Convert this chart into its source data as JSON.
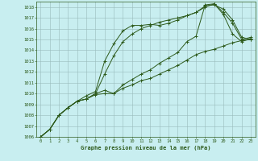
{
  "title": "Graphe pression niveau de la mer (hPa)",
  "bg_color": "#c8eef0",
  "grid_color": "#99bbbb",
  "line_color": "#2d5a1b",
  "ylim": [
    1006,
    1018.5
  ],
  "xlim": [
    -0.5,
    23.5
  ],
  "yticks": [
    1006,
    1007,
    1008,
    1009,
    1010,
    1011,
    1012,
    1013,
    1014,
    1015,
    1016,
    1017,
    1018
  ],
  "xticks": [
    0,
    1,
    2,
    3,
    4,
    5,
    6,
    7,
    8,
    9,
    10,
    11,
    12,
    13,
    14,
    15,
    16,
    17,
    18,
    19,
    20,
    21,
    22,
    23
  ],
  "lines": [
    {
      "x": [
        0,
        1,
        2,
        3,
        4,
        5,
        6,
        7,
        8,
        9,
        10,
        11,
        12,
        13,
        14,
        15,
        16,
        17,
        18,
        19,
        20,
        21,
        22,
        23
      ],
      "y": [
        1006.0,
        1006.7,
        1008.0,
        1008.7,
        1009.3,
        1009.8,
        1010.2,
        1013.0,
        1014.6,
        1015.8,
        1016.3,
        1016.3,
        1016.4,
        1016.3,
        1016.5,
        1016.8,
        1017.2,
        1017.5,
        1018.1,
        1018.2,
        1017.8,
        1016.8,
        1015.2,
        1015.0
      ]
    },
    {
      "x": [
        0,
        1,
        2,
        3,
        4,
        5,
        6,
        7,
        8,
        9,
        10,
        11,
        12,
        13,
        14,
        15,
        16,
        17,
        18,
        19,
        20,
        21,
        22,
        23
      ],
      "y": [
        1006.0,
        1006.7,
        1008.0,
        1008.7,
        1009.3,
        1009.5,
        1010.0,
        1010.3,
        1010.0,
        1010.8,
        1011.3,
        1011.8,
        1012.2,
        1012.8,
        1013.3,
        1013.8,
        1014.8,
        1015.3,
        1018.2,
        1018.3,
        1017.3,
        1015.5,
        1014.8,
        1015.1
      ]
    },
    {
      "x": [
        0,
        1,
        2,
        3,
        4,
        5,
        6,
        7,
        8,
        9,
        10,
        11,
        12,
        13,
        14,
        15,
        16,
        17,
        18,
        19,
        20,
        21,
        22,
        23
      ],
      "y": [
        1006.0,
        1006.7,
        1008.0,
        1008.7,
        1009.3,
        1009.5,
        1009.9,
        1010.0,
        1010.0,
        1010.5,
        1010.8,
        1011.2,
        1011.4,
        1011.8,
        1012.2,
        1012.6,
        1013.1,
        1013.6,
        1013.9,
        1014.1,
        1014.4,
        1014.7,
        1014.9,
        1015.0
      ]
    },
    {
      "x": [
        0,
        1,
        2,
        3,
        4,
        5,
        6,
        7,
        8,
        9,
        10,
        11,
        12,
        13,
        14,
        15,
        16,
        17,
        18,
        19,
        20,
        21,
        22,
        23
      ],
      "y": [
        1006.0,
        1006.7,
        1008.0,
        1008.7,
        1009.3,
        1009.5,
        1010.0,
        1011.8,
        1013.5,
        1014.8,
        1015.5,
        1016.0,
        1016.3,
        1016.6,
        1016.8,
        1017.0,
        1017.2,
        1017.5,
        1018.0,
        1018.3,
        1017.5,
        1016.5,
        1015.0,
        1015.2
      ]
    }
  ]
}
